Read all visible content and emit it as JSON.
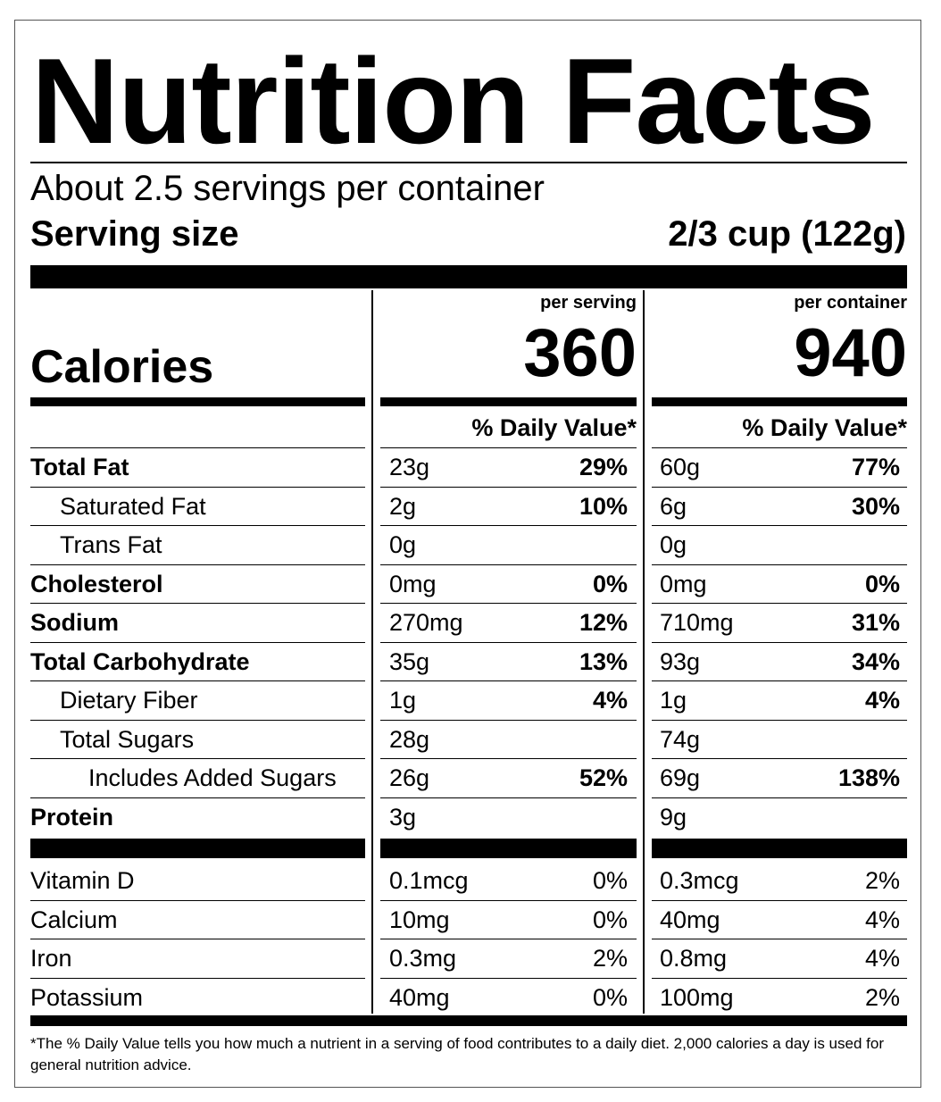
{
  "title": "Nutrition Facts",
  "servings_per_container": "About 2.5 servings per container",
  "serving_size_label": "Serving size",
  "serving_size_value": "2/3 cup (122g)",
  "calories_label": "Calories",
  "columns": [
    {
      "header": "per serving",
      "calories": "360",
      "dv_header": "% Daily Value*"
    },
    {
      "header": "per container",
      "calories": "940",
      "dv_header": "% Daily Value*"
    }
  ],
  "nutrients": [
    {
      "name": "Total Fat",
      "style": "bold",
      "indent": 0,
      "serving": {
        "amount": "23g",
        "dv": "29%"
      },
      "container": {
        "amount": "60g",
        "dv": "77%"
      }
    },
    {
      "name": "Saturated Fat",
      "style": "normal",
      "indent": 1,
      "serving": {
        "amount": "2g",
        "dv": "10%"
      },
      "container": {
        "amount": "6g",
        "dv": "30%"
      }
    },
    {
      "name": "Trans Fat",
      "style": "normal",
      "indent": 1,
      "serving": {
        "amount": "0g",
        "dv": ""
      },
      "container": {
        "amount": "0g",
        "dv": ""
      }
    },
    {
      "name": "Cholesterol",
      "style": "bold",
      "indent": 0,
      "serving": {
        "amount": "0mg",
        "dv": "0%"
      },
      "container": {
        "amount": "0mg",
        "dv": "0%"
      }
    },
    {
      "name": "Sodium",
      "style": "bold",
      "indent": 0,
      "serving": {
        "amount": "270mg",
        "dv": "12%"
      },
      "container": {
        "amount": "710mg",
        "dv": "31%"
      }
    },
    {
      "name": "Total Carbohydrate",
      "style": "bold",
      "indent": 0,
      "serving": {
        "amount": "35g",
        "dv": "13%"
      },
      "container": {
        "amount": "93g",
        "dv": "34%"
      }
    },
    {
      "name": "Dietary Fiber",
      "style": "normal",
      "indent": 1,
      "serving": {
        "amount": "1g",
        "dv": "4%"
      },
      "container": {
        "amount": "1g",
        "dv": "4%"
      }
    },
    {
      "name": "Total Sugars",
      "style": "normal",
      "indent": 1,
      "serving": {
        "amount": "28g",
        "dv": ""
      },
      "container": {
        "amount": "74g",
        "dv": ""
      }
    },
    {
      "name": "Includes Added Sugars",
      "style": "normal",
      "indent": 2,
      "serving": {
        "amount": "26g",
        "dv": "52%"
      },
      "container": {
        "amount": "69g",
        "dv": "138%"
      }
    },
    {
      "name": "Protein",
      "style": "bold",
      "indent": 0,
      "serving": {
        "amount": "3g",
        "dv": ""
      },
      "container": {
        "amount": "9g",
        "dv": ""
      }
    }
  ],
  "vitamins": [
    {
      "name": "Vitamin D",
      "serving": {
        "amount": "0.1mcg",
        "dv": "0%"
      },
      "container": {
        "amount": "0.3mcg",
        "dv": "2%"
      }
    },
    {
      "name": "Calcium",
      "serving": {
        "amount": "10mg",
        "dv": "0%"
      },
      "container": {
        "amount": "40mg",
        "dv": "4%"
      }
    },
    {
      "name": "Iron",
      "serving": {
        "amount": "0.3mg",
        "dv": "2%"
      },
      "container": {
        "amount": "0.8mg",
        "dv": "4%"
      }
    },
    {
      "name": "Potassium",
      "serving": {
        "amount": "40mg",
        "dv": "0%"
      },
      "container": {
        "amount": "100mg",
        "dv": "2%"
      }
    }
  ],
  "footnote": "*The % Daily Value tells you how much a nutrient in a serving of food contributes to a daily diet. 2,000 calories a day is used for general nutrition advice."
}
